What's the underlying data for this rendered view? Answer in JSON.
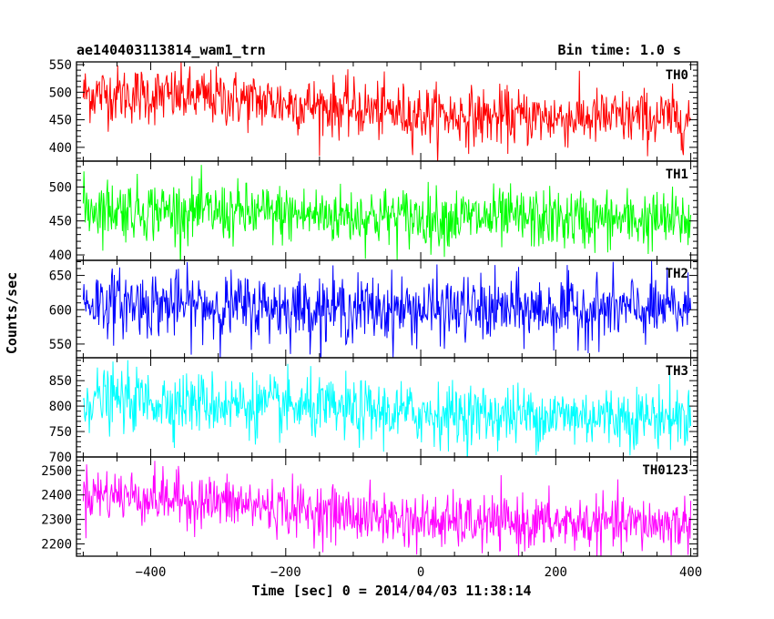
{
  "chart_data": {
    "type": "line",
    "title": "ae140403113814_wam1_trn",
    "subtitle": "Bin time: 1.0 s",
    "xlabel": "Time [sec] 0 = 2014/04/03 11:38:14",
    "ylabel": "Counts/sec",
    "xlim": [
      -510,
      410
    ],
    "xticks": [
      -400,
      -200,
      0,
      200,
      400
    ],
    "xtick_labels": [
      "−400",
      "−200",
      "0",
      "200",
      "400"
    ],
    "x_start": -500,
    "x_end": 400,
    "bin": 1.0,
    "panels": [
      {
        "name": "TH0",
        "color": "#ff0000",
        "ylim": [
          375,
          555
        ],
        "yticks": [
          400,
          450,
          500,
          550
        ],
        "trend": [
          [
            -500,
            498
          ],
          [
            -300,
            490
          ],
          [
            -100,
            470
          ],
          [
            0,
            460
          ],
          [
            100,
            455
          ],
          [
            400,
            452
          ]
        ],
        "noise": 26
      },
      {
        "name": "TH1",
        "color": "#00ff00",
        "ylim": [
          392,
          538
        ],
        "yticks": [
          400,
          450,
          500
        ],
        "trend": [
          [
            -500,
            470
          ],
          [
            -300,
            462
          ],
          [
            0,
            455
          ],
          [
            400,
            450
          ]
        ],
        "noise": 22
      },
      {
        "name": "TH2",
        "color": "#0000ff",
        "ylim": [
          530,
          672
        ],
        "yticks": [
          550,
          600,
          650
        ],
        "trend": [
          [
            -500,
            612
          ],
          [
            -300,
            605
          ],
          [
            0,
            600
          ],
          [
            400,
            600
          ]
        ],
        "noise": 24
      },
      {
        "name": "TH3",
        "color": "#00ffff",
        "ylim": [
          700,
          895
        ],
        "yticks": [
          700,
          750,
          800,
          850
        ],
        "trend": [
          [
            -500,
            815
          ],
          [
            -300,
            805
          ],
          [
            -100,
            790
          ],
          [
            0,
            785
          ],
          [
            400,
            778
          ]
        ],
        "noise": 30
      },
      {
        "name": "TH0123",
        "color": "#ff00ff",
        "ylim": [
          2150,
          2555
        ],
        "yticks": [
          2200,
          2300,
          2400,
          2500
        ],
        "trend": [
          [
            -500,
            2410
          ],
          [
            -300,
            2370
          ],
          [
            -100,
            2320
          ],
          [
            0,
            2290
          ],
          [
            100,
            2285
          ],
          [
            400,
            2280
          ]
        ],
        "noise": 55
      }
    ]
  }
}
